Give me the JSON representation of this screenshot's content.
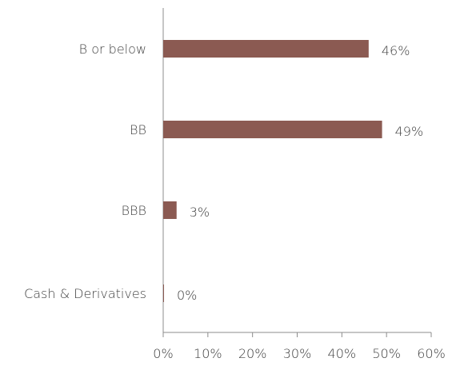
{
  "chart_data": {
    "type": "bar",
    "orientation": "horizontal",
    "categories": [
      "B or below",
      "BB",
      "BBB",
      "Cash & Derivatives"
    ],
    "values": [
      46,
      49,
      3,
      0
    ],
    "data_labels": [
      "46%",
      "49%",
      "3%",
      "0%"
    ],
    "xlim": [
      0,
      60
    ],
    "x_ticks": [
      0,
      10,
      20,
      30,
      40,
      50,
      60
    ],
    "x_tick_labels": [
      "0%",
      "10%",
      "20%",
      "30%",
      "40%",
      "50%",
      "60%"
    ],
    "title": "",
    "xlabel": "",
    "ylabel": "",
    "grid": false,
    "legend": "none",
    "bar_color": "#8B5A52"
  }
}
